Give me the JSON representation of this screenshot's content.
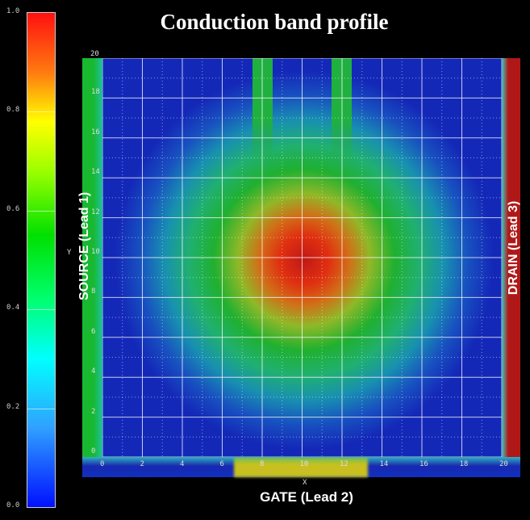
{
  "chart_data": {
    "type": "heatmap",
    "title": "Conduction band profile",
    "xlabel": "X",
    "ylabel": "Y",
    "xlim": [
      0,
      20
    ],
    "ylim": [
      0,
      20
    ],
    "x_ticks": [
      "0",
      "2",
      "4",
      "6",
      "8",
      "10",
      "12",
      "14",
      "16",
      "18",
      "20"
    ],
    "y_ticks": [
      "0",
      "2",
      "4",
      "6",
      "8",
      "10",
      "12",
      "14",
      "16",
      "18",
      "20"
    ],
    "colorbar": {
      "range": [
        0.0,
        1.0
      ],
      "ticks": [
        "0.0",
        "0.2",
        "0.4",
        "0.6",
        "0.8",
        "1.0"
      ]
    },
    "peak": {
      "x": 10,
      "y": 10,
      "value": 0.95
    },
    "grid": true,
    "leads": {
      "source": "SOURCE (Lead 1)",
      "gate": "GATE (Lead 2)",
      "drain": "DRAIN (Lead 3)"
    }
  },
  "colors": {
    "source": "#18b830",
    "drain": "#b01818",
    "gate": "#c8c020",
    "background": "#1428b8"
  }
}
